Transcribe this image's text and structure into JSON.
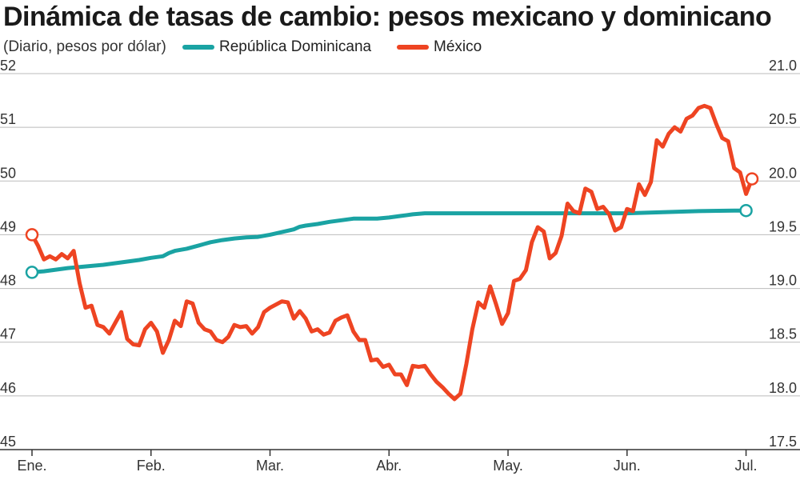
{
  "title": "Dinámica de tasas de cambio:  pesos mexicano y dominicano",
  "subtitle": "(Diario, pesos por dólar)",
  "colors": {
    "rd": "#1aa3a3",
    "mx": "#ee4422",
    "grid": "#bbbbbb",
    "axis": "#333333",
    "text": "#333333"
  },
  "chart_data": {
    "type": "line",
    "title": "Dinámica de tasas de cambio:  pesos mexicano y dominicano",
    "ylabel_left": "(Diario, pesos por dólar)",
    "legend_position": "top",
    "grid": true,
    "x_ticks": [
      "Ene.",
      "Feb.",
      "Mar.",
      "Abr.",
      "May.",
      "Jun.",
      "Jul."
    ],
    "xlim": [
      0,
      6.05
    ],
    "y_left": {
      "lim": [
        45,
        52
      ],
      "ticks": [
        "45",
        "46",
        "47",
        "48",
        "49",
        "50",
        "51",
        "52"
      ]
    },
    "y_right": {
      "lim": [
        17.5,
        21.0
      ],
      "ticks": [
        "17.5",
        "18.0",
        "18.5",
        "19.0",
        "19.5",
        "20.0",
        "20.5",
        "21.0"
      ]
    },
    "series": [
      {
        "name": "República Dominicana",
        "axis": "left",
        "color": "#1aa3a3",
        "points": [
          [
            0,
            48.3
          ],
          [
            0.1,
            48.32
          ],
          [
            0.2,
            48.35
          ],
          [
            0.3,
            48.38
          ],
          [
            0.4,
            48.4
          ],
          [
            0.5,
            48.42
          ],
          [
            0.6,
            48.44
          ],
          [
            0.7,
            48.47
          ],
          [
            0.8,
            48.5
          ],
          [
            0.9,
            48.53
          ],
          [
            1.0,
            48.57
          ],
          [
            1.1,
            48.6
          ],
          [
            1.15,
            48.66
          ],
          [
            1.2,
            48.7
          ],
          [
            1.3,
            48.74
          ],
          [
            1.4,
            48.8
          ],
          [
            1.5,
            48.86
          ],
          [
            1.6,
            48.9
          ],
          [
            1.7,
            48.93
          ],
          [
            1.8,
            48.95
          ],
          [
            1.9,
            48.96
          ],
          [
            2.0,
            49.0
          ],
          [
            2.1,
            49.05
          ],
          [
            2.2,
            49.1
          ],
          [
            2.25,
            49.15
          ],
          [
            2.3,
            49.17
          ],
          [
            2.4,
            49.2
          ],
          [
            2.5,
            49.24
          ],
          [
            2.6,
            49.27
          ],
          [
            2.7,
            49.3
          ],
          [
            2.8,
            49.3
          ],
          [
            2.9,
            49.3
          ],
          [
            3.0,
            49.32
          ],
          [
            3.1,
            49.35
          ],
          [
            3.2,
            49.38
          ],
          [
            3.3,
            49.4
          ],
          [
            3.5,
            49.4
          ],
          [
            4.0,
            49.4
          ],
          [
            4.5,
            49.4
          ],
          [
            5.0,
            49.4
          ],
          [
            5.3,
            49.42
          ],
          [
            5.6,
            49.44
          ],
          [
            5.9,
            49.45
          ],
          [
            6.0,
            49.45
          ]
        ]
      },
      {
        "name": "México",
        "axis": "right",
        "color": "#ee4422",
        "points": [
          [
            0,
            19.5
          ],
          [
            0.05,
            19.4
          ],
          [
            0.1,
            19.27
          ],
          [
            0.15,
            19.3
          ],
          [
            0.2,
            19.27
          ],
          [
            0.25,
            19.32
          ],
          [
            0.3,
            19.28
          ],
          [
            0.35,
            19.35
          ],
          [
            0.4,
            19.05
          ],
          [
            0.45,
            18.82
          ],
          [
            0.5,
            18.84
          ],
          [
            0.55,
            18.66
          ],
          [
            0.6,
            18.64
          ],
          [
            0.65,
            18.58
          ],
          [
            0.7,
            18.68
          ],
          [
            0.75,
            18.78
          ],
          [
            0.8,
            18.53
          ],
          [
            0.85,
            18.48
          ],
          [
            0.9,
            18.47
          ],
          [
            0.95,
            18.62
          ],
          [
            1.0,
            18.68
          ],
          [
            1.05,
            18.6
          ],
          [
            1.1,
            18.4
          ],
          [
            1.15,
            18.52
          ],
          [
            1.2,
            18.7
          ],
          [
            1.25,
            18.65
          ],
          [
            1.3,
            18.88
          ],
          [
            1.35,
            18.86
          ],
          [
            1.4,
            18.68
          ],
          [
            1.45,
            18.62
          ],
          [
            1.5,
            18.6
          ],
          [
            1.55,
            18.52
          ],
          [
            1.6,
            18.5
          ],
          [
            1.65,
            18.55
          ],
          [
            1.7,
            18.66
          ],
          [
            1.75,
            18.64
          ],
          [
            1.8,
            18.65
          ],
          [
            1.85,
            18.58
          ],
          [
            1.9,
            18.64
          ],
          [
            1.95,
            18.78
          ],
          [
            2.0,
            18.82
          ],
          [
            2.05,
            18.85
          ],
          [
            2.1,
            18.88
          ],
          [
            2.15,
            18.87
          ],
          [
            2.2,
            18.72
          ],
          [
            2.25,
            18.79
          ],
          [
            2.3,
            18.72
          ],
          [
            2.35,
            18.6
          ],
          [
            2.4,
            18.62
          ],
          [
            2.45,
            18.57
          ],
          [
            2.5,
            18.59
          ],
          [
            2.55,
            18.7
          ],
          [
            2.6,
            18.73
          ],
          [
            2.65,
            18.75
          ],
          [
            2.7,
            18.6
          ],
          [
            2.75,
            18.52
          ],
          [
            2.8,
            18.52
          ],
          [
            2.85,
            18.33
          ],
          [
            2.9,
            18.34
          ],
          [
            2.95,
            18.27
          ],
          [
            3.0,
            18.29
          ],
          [
            3.05,
            18.2
          ],
          [
            3.1,
            18.2
          ],
          [
            3.15,
            18.1
          ],
          [
            3.2,
            18.28
          ],
          [
            3.25,
            18.27
          ],
          [
            3.3,
            18.28
          ],
          [
            3.35,
            18.2
          ],
          [
            3.4,
            18.13
          ],
          [
            3.45,
            18.08
          ],
          [
            3.5,
            18.02
          ],
          [
            3.55,
            17.97
          ],
          [
            3.6,
            18.02
          ],
          [
            3.65,
            18.3
          ],
          [
            3.7,
            18.62
          ],
          [
            3.75,
            18.87
          ],
          [
            3.8,
            18.82
          ],
          [
            3.85,
            19.02
          ],
          [
            3.9,
            18.85
          ],
          [
            3.95,
            18.67
          ],
          [
            4.0,
            18.77
          ],
          [
            4.05,
            19.07
          ],
          [
            4.1,
            19.09
          ],
          [
            4.15,
            19.17
          ],
          [
            4.2,
            19.43
          ],
          [
            4.25,
            19.57
          ],
          [
            4.3,
            19.53
          ],
          [
            4.35,
            19.28
          ],
          [
            4.4,
            19.33
          ],
          [
            4.45,
            19.49
          ],
          [
            4.5,
            19.79
          ],
          [
            4.55,
            19.72
          ],
          [
            4.6,
            19.7
          ],
          [
            4.65,
            19.93
          ],
          [
            4.7,
            19.9
          ],
          [
            4.75,
            19.74
          ],
          [
            4.8,
            19.76
          ],
          [
            4.85,
            19.69
          ],
          [
            4.9,
            19.54
          ],
          [
            4.95,
            19.57
          ],
          [
            5.0,
            19.74
          ],
          [
            5.05,
            19.72
          ],
          [
            5.1,
            19.97
          ],
          [
            5.15,
            19.87
          ],
          [
            5.2,
            19.99
          ],
          [
            5.25,
            20.38
          ],
          [
            5.3,
            20.32
          ],
          [
            5.35,
            20.44
          ],
          [
            5.4,
            20.5
          ],
          [
            5.45,
            20.46
          ],
          [
            5.5,
            20.58
          ],
          [
            5.55,
            20.61
          ],
          [
            5.6,
            20.68
          ],
          [
            5.65,
            20.7
          ],
          [
            5.7,
            20.68
          ],
          [
            5.75,
            20.53
          ],
          [
            5.8,
            20.4
          ],
          [
            5.85,
            20.37
          ],
          [
            5.9,
            20.12
          ],
          [
            5.95,
            20.08
          ],
          [
            6.0,
            19.88
          ],
          [
            6.05,
            20.02
          ]
        ]
      }
    ]
  }
}
